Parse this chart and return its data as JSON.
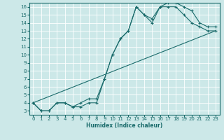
{
  "title": "",
  "xlabel": "Humidex (Indice chaleur)",
  "bg_color": "#cce8e8",
  "grid_color": "#ffffff",
  "line_color": "#1a6b6b",
  "marker": "+",
  "xlim": [
    -0.5,
    23.5
  ],
  "ylim": [
    2.5,
    16.5
  ],
  "xticks": [
    0,
    1,
    2,
    3,
    4,
    5,
    6,
    7,
    8,
    9,
    10,
    11,
    12,
    13,
    14,
    15,
    16,
    17,
    18,
    19,
    20,
    21,
    22,
    23
  ],
  "yticks": [
    3,
    4,
    5,
    6,
    7,
    8,
    9,
    10,
    11,
    12,
    13,
    14,
    15,
    16
  ],
  "line1_x": [
    0,
    1,
    2,
    3,
    4,
    5,
    6,
    7,
    8,
    9,
    10,
    11,
    12,
    13,
    14,
    15,
    16,
    17,
    18,
    19,
    20,
    21,
    22,
    23
  ],
  "line1_y": [
    4,
    3,
    3,
    4,
    4,
    3.5,
    3.5,
    4,
    4,
    7,
    10,
    12,
    13,
    16,
    15,
    14,
    16,
    16,
    16,
    15,
    14,
    13.5,
    13,
    13
  ],
  "line2_x": [
    0,
    1,
    2,
    3,
    4,
    5,
    6,
    7,
    8,
    9,
    10,
    11,
    12,
    13,
    14,
    15,
    16,
    17,
    18,
    19,
    20,
    21,
    22,
    23
  ],
  "line2_y": [
    4,
    3,
    3,
    4,
    4,
    3.5,
    4,
    4.5,
    4.5,
    7,
    10,
    12,
    13,
    16,
    15,
    14.5,
    16,
    16.5,
    16.5,
    16,
    15.5,
    14,
    13.5,
    13.5
  ],
  "line3_x": [
    0,
    23
  ],
  "line3_y": [
    4,
    13
  ],
  "xlabel_fontsize": 5.5,
  "tick_fontsize": 5.0
}
